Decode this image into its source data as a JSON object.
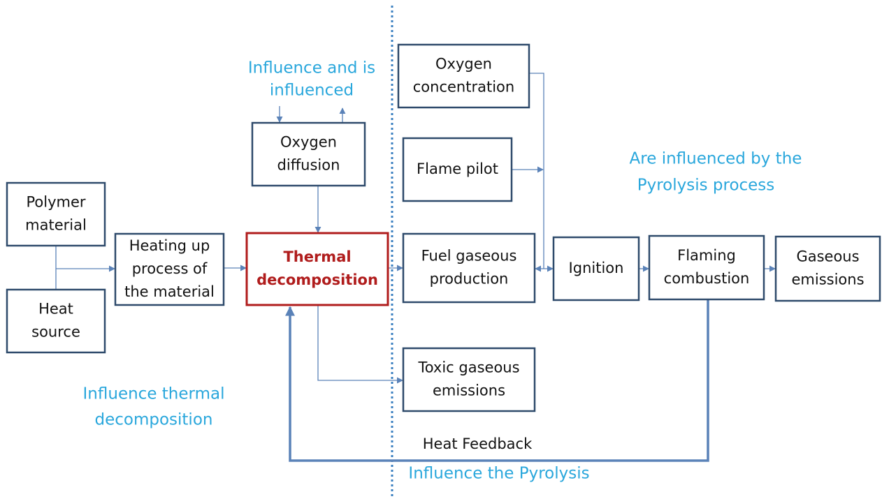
{
  "nodes": [
    {
      "label": [
        "Polymer",
        "material"
      ]
    },
    {
      "label": [
        "Heat",
        "source"
      ]
    },
    {
      "label": [
        "Heating up",
        "process of",
        "the material"
      ]
    },
    {
      "label": [
        "Thermal",
        "decomposition"
      ]
    },
    {
      "label": [
        "Oxygen",
        "diffusion"
      ]
    },
    {
      "label": [
        "Oxygen",
        "concentration"
      ]
    },
    {
      "label": [
        "Flame pilot"
      ]
    },
    {
      "label": [
        "Fuel gaseous",
        "production"
      ]
    },
    {
      "label": [
        "Toxic gaseous",
        "emissions"
      ]
    },
    {
      "label": [
        "Ignition"
      ]
    },
    {
      "label": [
        "Flaming",
        "combustion"
      ]
    },
    {
      "label": [
        "Gaseous",
        "emissions"
      ]
    }
  ],
  "annotations": [
    {
      "text": [
        "Influence and is",
        "influenced"
      ]
    },
    {
      "text": [
        "Are influenced by the",
        "Pyrolysis process"
      ]
    },
    {
      "text": [
        "Influence thermal",
        "decomposition"
      ]
    },
    {
      "text": [
        "Heat Feedback"
      ]
    },
    {
      "text": [
        "Influence the Pyrolysis"
      ]
    }
  ]
}
